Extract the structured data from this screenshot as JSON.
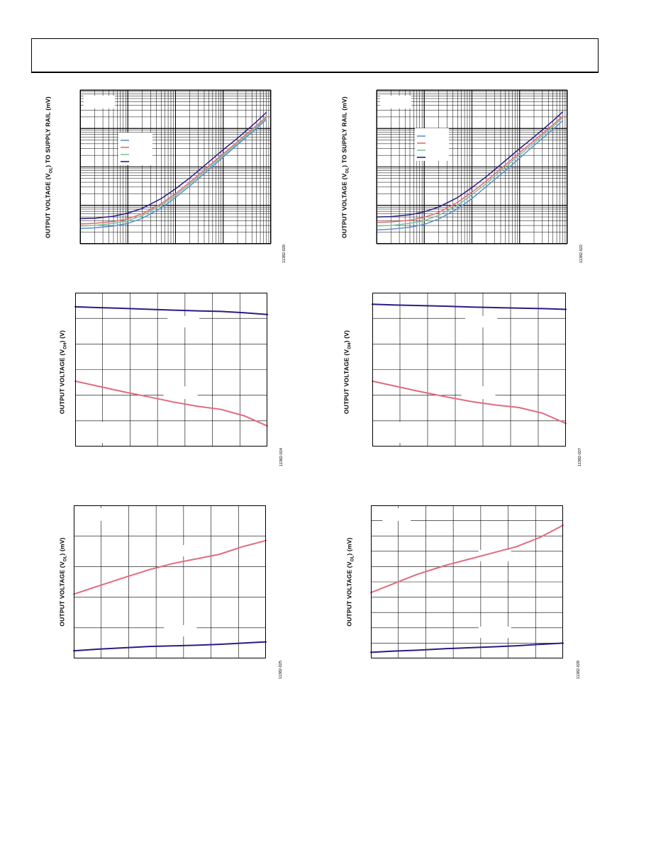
{
  "page": {
    "header_text": ""
  },
  "colors": {
    "dark": "#2b1b86",
    "pink": "#e26a7c",
    "blue": "#5b8fcf",
    "green": "#7cc39a",
    "grid": "#000000"
  },
  "charts": [
    {
      "ylabel_pre": "OUTPUT VOLTAGE (V",
      "ylabel_sub": "OL",
      "ylabel_post": ") TO SUPPLY RAIL (mV)",
      "figure_id": "11382-020",
      "chart_data": {
        "type": "line",
        "title": "",
        "xlabel": "",
        "ylabel": "OUTPUT VOLTAGE (VOL) TO SUPPLY RAIL (mV)",
        "xscale": "log",
        "yscale": "log",
        "xlim": [
          0.001,
          10
        ],
        "ylim": [
          1,
          10000
        ],
        "grid": true,
        "legend": "upper-left",
        "x": [
          0.001,
          0.002,
          0.005,
          0.01,
          0.02,
          0.05,
          0.1,
          0.2,
          0.5,
          1,
          2,
          5,
          8
        ],
        "series": [
          {
            "name": "",
            "color": "blue",
            "values": [
              2.5,
              2.6,
              2.9,
              3.4,
              4.6,
              8.5,
              16,
              32,
              85,
              180,
              380,
              1000,
              1700
            ]
          },
          {
            "name": "",
            "color": "pink",
            "values": [
              3.3,
              3.4,
              3.8,
              4.5,
              6.0,
              11,
              20,
              40,
              105,
              220,
              450,
              1200,
              2000
            ]
          },
          {
            "name": "",
            "color": "green",
            "values": [
              2.9,
              3.0,
              3.4,
              4.0,
              5.4,
              10,
              18,
              36,
              95,
              200,
              410,
              1100,
              1850
            ]
          },
          {
            "name": "",
            "color": "dark",
            "values": [
              4.5,
              4.6,
              5.2,
              6.3,
              8.3,
              15,
              27,
              52,
              135,
              280,
              560,
              1500,
              2600
            ]
          }
        ]
      }
    },
    {
      "ylabel_pre": "OUTPUT VOLTAGE (V",
      "ylabel_sub": "OL",
      "ylabel_post": ") TO SUPPLY RAIL (mV)",
      "figure_id": "11382-022",
      "chart_data": {
        "type": "line",
        "title": "",
        "xlabel": "",
        "ylabel": "OUTPUT VOLTAGE (VOL) TO SUPPLY RAIL (mV)",
        "xscale": "log",
        "yscale": "log",
        "xlim": [
          0.001,
          10
        ],
        "ylim": [
          1,
          10000
        ],
        "grid": true,
        "legend": "upper-left",
        "x": [
          0.001,
          0.002,
          0.005,
          0.01,
          0.02,
          0.05,
          0.1,
          0.2,
          0.5,
          1,
          2,
          5,
          8
        ],
        "series": [
          {
            "name": "",
            "color": "blue",
            "values": [
              2.3,
              2.4,
              2.7,
              3.2,
              4.4,
              8.2,
              15,
              31,
              80,
              170,
              360,
              950,
              1600
            ]
          },
          {
            "name": "",
            "color": "pink",
            "values": [
              3.6,
              3.7,
              4.1,
              4.9,
              6.5,
              12,
              22,
              43,
              112,
              235,
              480,
              1250,
              2100
            ]
          },
          {
            "name": "",
            "color": "green",
            "values": [
              2.9,
              3.0,
              3.4,
              4.0,
              5.5,
              10,
              19,
              37,
              98,
              205,
              420,
              1120,
              1900
            ]
          },
          {
            "name": "",
            "color": "dark",
            "values": [
              5.0,
              5.1,
              5.7,
              6.8,
              9.0,
              16,
              29,
              56,
              145,
              300,
              600,
              1580,
              2700
            ]
          }
        ]
      }
    },
    {
      "ylabel_pre": "OUTPUT VOLTAGE (V",
      "ylabel_sub": "OH",
      "ylabel_post": ") (V)",
      "figure_id": "11382-024",
      "chart_data": {
        "type": "line",
        "title": "",
        "xlabel": "",
        "ylabel": "OUTPUT VOLTAGE (VOH) (V)",
        "xlim": [
          -40,
          125
        ],
        "ylim": [
          0,
          6
        ],
        "grid": true,
        "x": [
          -40,
          -20,
          0,
          25,
          45,
          65,
          85,
          105,
          125
        ],
        "series": [
          {
            "name": "",
            "color": "dark",
            "values": [
              5.45,
              5.42,
              5.39,
              5.35,
              5.32,
              5.29,
              5.27,
              5.22,
              5.15
            ]
          },
          {
            "name": "",
            "color": "pink",
            "values": [
              2.55,
              2.35,
              2.15,
              1.92,
              1.73,
              1.57,
              1.45,
              1.2,
              0.8
            ]
          }
        ]
      }
    },
    {
      "ylabel_pre": "OUTPUT VOLTAGE (V",
      "ylabel_sub": "OH",
      "ylabel_post": ") (V)",
      "figure_id": "11382-027",
      "chart_data": {
        "type": "line",
        "title": "",
        "xlabel": "",
        "ylabel": "OUTPUT VOLTAGE (VOH) (V)",
        "xlim": [
          -40,
          125
        ],
        "ylim": [
          0,
          6
        ],
        "grid": true,
        "x": [
          -40,
          -20,
          0,
          25,
          45,
          65,
          85,
          105,
          125
        ],
        "series": [
          {
            "name": "",
            "color": "dark",
            "values": [
              5.55,
              5.52,
              5.5,
              5.47,
              5.44,
              5.42,
              5.4,
              5.38,
              5.35
            ]
          },
          {
            "name": "",
            "color": "pink",
            "values": [
              2.55,
              2.35,
              2.15,
              1.92,
              1.75,
              1.62,
              1.52,
              1.3,
              0.9
            ]
          }
        ]
      }
    },
    {
      "ylabel_pre": "OUTPUT VOLTAGE (V",
      "ylabel_sub": "OL",
      "ylabel_post": ") (mV)",
      "figure_id": "11382-025",
      "chart_data": {
        "type": "line",
        "title": "",
        "xlabel": "",
        "ylabel": "OUTPUT VOLTAGE (VOL) (mV)",
        "xlim": [
          -40,
          125
        ],
        "ylim": [
          0,
          50
        ],
        "grid": true,
        "x": [
          -40,
          -20,
          0,
          25,
          45,
          65,
          85,
          105,
          125
        ],
        "series": [
          {
            "name": "",
            "color": "pink",
            "values": [
              21,
              23.5,
              26,
              29,
              31,
              32.5,
              34,
              36.5,
              38.5
            ]
          },
          {
            "name": "",
            "color": "dark",
            "values": [
              2.5,
              3.0,
              3.4,
              3.9,
              4.1,
              4.3,
              4.6,
              5.0,
              5.4
            ]
          }
        ]
      }
    },
    {
      "ylabel_pre": "OUTPUT VOLTAGE (V",
      "ylabel_sub": "OL",
      "ylabel_post": ") (mV)",
      "figure_id": "11382-028",
      "chart_data": {
        "type": "line",
        "title": "",
        "xlabel": "",
        "ylabel": "OUTPUT VOLTAGE (VOL) (mV)",
        "xlim": [
          -40,
          125
        ],
        "ylim": [
          0,
          100
        ],
        "grid": true,
        "x": [
          -40,
          -20,
          0,
          25,
          45,
          65,
          85,
          105,
          125
        ],
        "series": [
          {
            "name": "",
            "color": "pink",
            "values": [
              43,
              49,
              55,
              61,
              65,
              69,
              73,
              79,
              87
            ]
          },
          {
            "name": "",
            "color": "dark",
            "values": [
              4,
              4.8,
              5.4,
              6.4,
              7.0,
              7.6,
              8.3,
              9.2,
              10
            ]
          }
        ]
      }
    }
  ]
}
